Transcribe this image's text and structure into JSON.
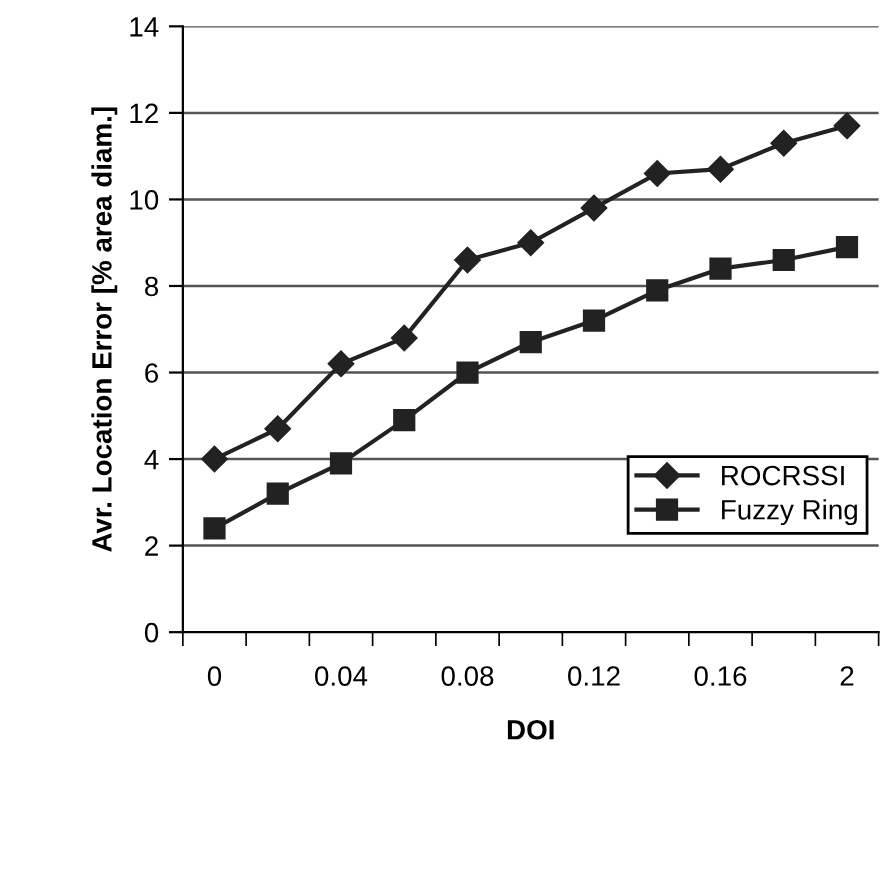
{
  "chart_data": {
    "type": "line",
    "xlabel": "DOI",
    "ylabel": "Avr. Location Error [% area diam.]",
    "categories": [
      "0",
      null,
      "0.04",
      null,
      "0.08",
      null,
      "0.12",
      null,
      "0.16",
      null,
      "2"
    ],
    "series": [
      {
        "name": "ROCRSSI",
        "color": "#222222",
        "marker": "diamond",
        "values": [
          4.0,
          4.7,
          6.2,
          6.8,
          8.6,
          9.0,
          9.8,
          10.6,
          10.7,
          11.3,
          11.7
        ]
      },
      {
        "name": "Fuzzy Ring",
        "color": "#222222",
        "marker": "square",
        "values": [
          2.4,
          3.2,
          3.9,
          4.9,
          6.0,
          6.7,
          7.2,
          7.9,
          8.4,
          8.6,
          8.9
        ]
      }
    ],
    "ylim": [
      0,
      14
    ],
    "yticks": [
      0,
      2,
      4,
      6,
      8,
      10,
      12,
      14
    ],
    "grid": "y",
    "legend": "right",
    "line_style": "solid"
  }
}
